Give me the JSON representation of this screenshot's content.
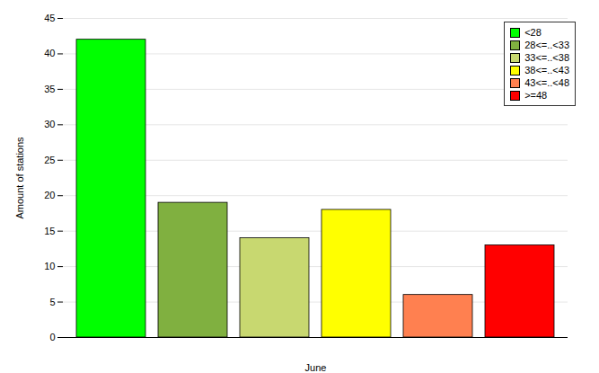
{
  "chart_data": {
    "type": "bar",
    "xlabel": "June",
    "ylabel": "Amount of stations",
    "categories": [
      null
    ],
    "series": [
      {
        "name": "<28",
        "color": "#00ff00",
        "values": [
          42
        ]
      },
      {
        "name": "28<=..<33",
        "color": "#80b040",
        "values": [
          19
        ]
      },
      {
        "name": "33<=..<38",
        "color": "#c8d870",
        "values": [
          14
        ]
      },
      {
        "name": "38<=..<43",
        "color": "#ffff00",
        "values": [
          18
        ]
      },
      {
        "name": "43<=..<48",
        "color": "#ff8050",
        "values": [
          6
        ]
      },
      {
        "name": ">=48",
        "color": "#ff0000",
        "values": [
          13
        ]
      }
    ],
    "ylim": [
      0,
      45
    ],
    "yticks": [
      0,
      5,
      10,
      15,
      20,
      25,
      30,
      35,
      40,
      45
    ],
    "grid": true,
    "legend": "upper right",
    "tick_labels": "y"
  }
}
